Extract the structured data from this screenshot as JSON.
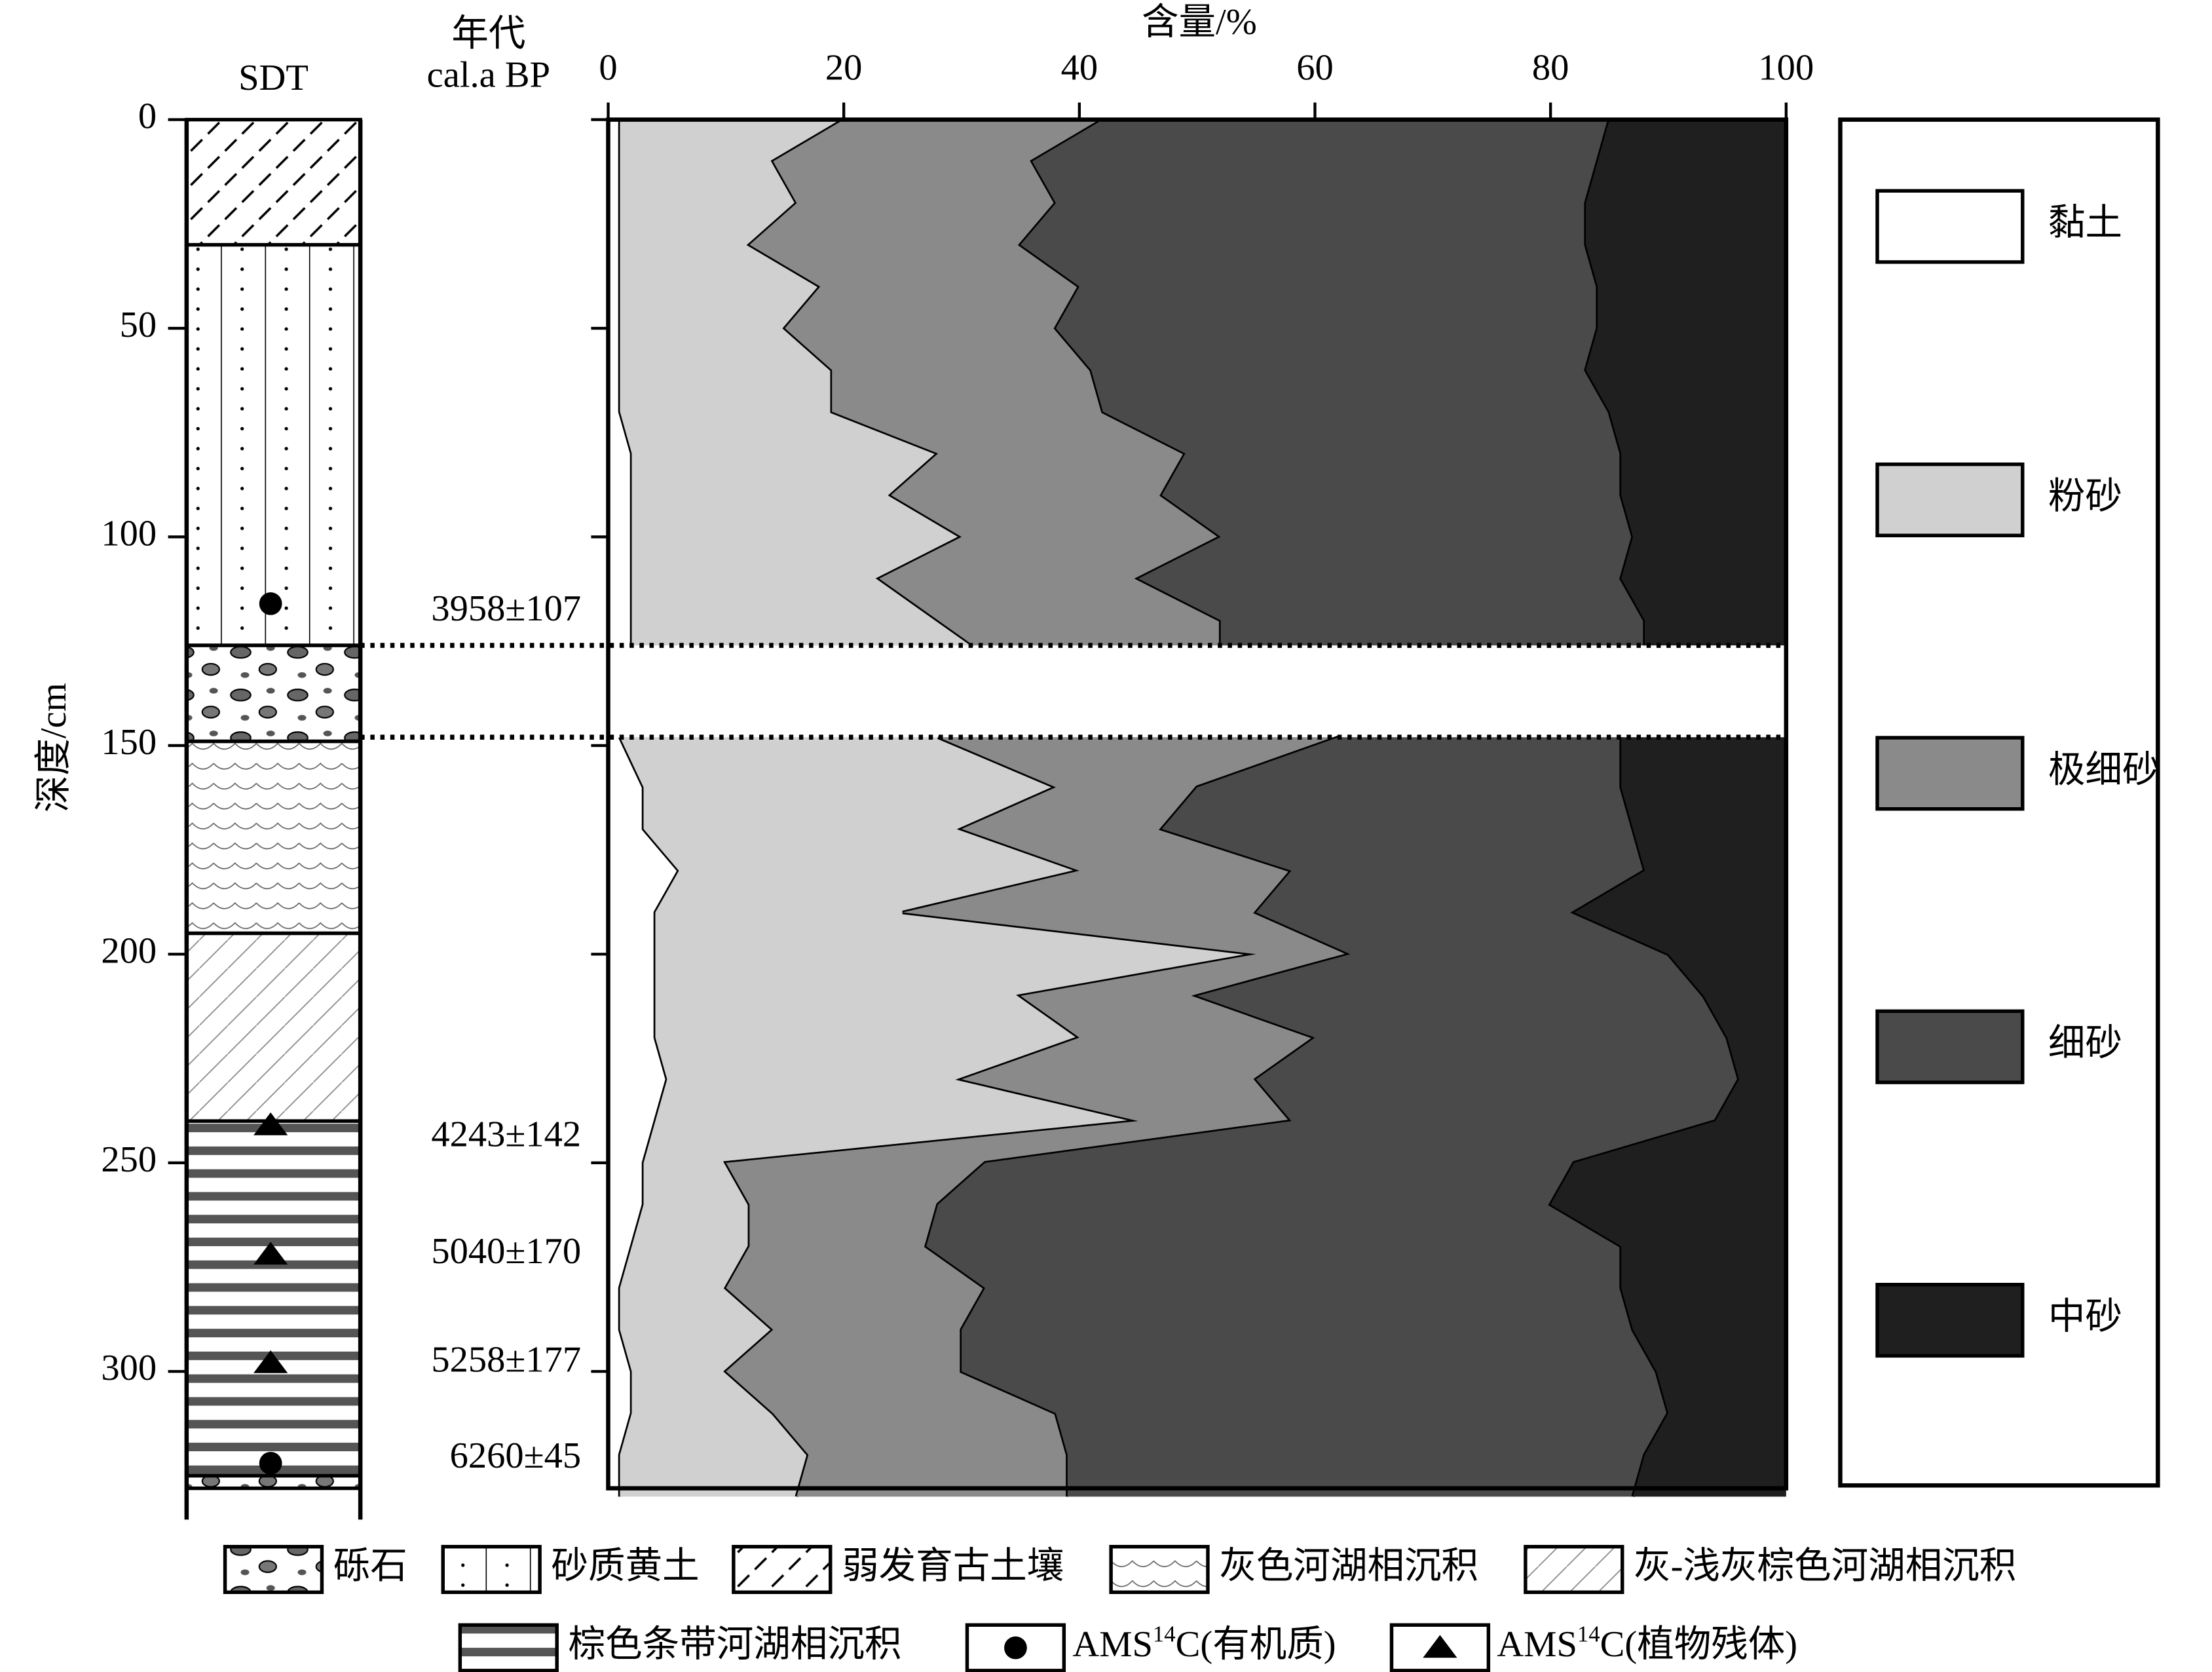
{
  "chart_data": {
    "type": "stacked-area-depth",
    "x_label": "含量/%",
    "y_label": "深度/cm",
    "column_title": "SDT",
    "age_title": "年代",
    "age_unit": "cal.a BP",
    "xlim": [
      0,
      100
    ],
    "xticks": [
      0,
      20,
      40,
      60,
      80,
      100
    ],
    "ylim": [
      0,
      328
    ],
    "yticks": [
      0,
      50,
      100,
      150,
      200,
      250,
      300
    ],
    "depths": [
      0,
      10,
      20,
      30,
      40,
      50,
      60,
      70,
      80,
      90,
      100,
      110,
      120,
      126,
      137,
      148,
      160,
      170,
      180,
      190,
      200,
      210,
      220,
      230,
      240,
      250,
      260,
      270,
      280,
      290,
      300,
      310,
      320,
      330
    ],
    "series": [
      {
        "name": "黏土",
        "color": "#ffffff",
        "values": [
          1,
          1,
          1,
          1,
          1,
          1,
          1,
          1,
          2,
          2,
          2,
          2,
          2,
          2,
          null,
          1,
          3,
          3,
          6,
          4,
          4,
          4,
          4,
          5,
          4,
          3,
          3,
          2,
          1,
          1,
          2,
          2,
          1,
          1
        ]
      },
      {
        "name": "粉砂",
        "color": "#d0d0d0",
        "values": [
          19,
          13,
          15,
          11,
          17,
          14,
          18,
          18,
          26,
          22,
          28,
          21,
          26,
          29,
          null,
          27,
          35,
          27,
          34,
          21,
          51,
          31,
          36,
          25,
          41,
          7,
          9,
          10,
          9,
          13,
          8,
          12,
          16,
          15
        ]
      },
      {
        "name": "极细砂",
        "color": "#8a8a8a",
        "values": [
          22,
          22,
          22,
          23,
          22,
          23,
          22,
          23,
          21,
          23,
          22,
          22,
          24,
          21,
          null,
          34,
          12,
          17,
          18,
          30,
          8,
          15,
          20,
          25,
          13,
          22,
          16,
          15,
          22,
          16,
          20,
          24,
          22,
          23
        ]
      },
      {
        "name": "细砂",
        "color": "#4a4a4a",
        "values": [
          43,
          48,
          45,
          48,
          44,
          46,
          42,
          43,
          37,
          39,
          35,
          41,
          36,
          36,
          null,
          24,
          36,
          40,
          30,
          27,
          27,
          43,
          35,
          41,
          36,
          50,
          52,
          59,
          54,
          57,
          59,
          52,
          49,
          48
        ]
      },
      {
        "name": "中砂",
        "color": "#1f1f1f",
        "values": [
          15,
          16,
          17,
          17,
          16,
          16,
          17,
          15,
          14,
          14,
          13,
          14,
          12,
          12,
          null,
          14,
          14,
          13,
          12,
          18,
          10,
          7,
          5,
          4,
          6,
          18,
          20,
          14,
          14,
          13,
          11,
          10,
          12,
          13
        ]
      }
    ],
    "ages": [
      {
        "text": "3958±107",
        "depth": 118
      },
      {
        "text": "4243±142",
        "depth": 244
      },
      {
        "text": "5040±170",
        "depth": 272
      },
      {
        "text": "5258±177",
        "depth": 298
      },
      {
        "text": "6260±45",
        "depth": 321
      }
    ],
    "lithology_legend": [
      "砾石",
      "砂质黄土",
      "弱发育古土壤",
      "灰色河湖相沉积",
      "灰-浅灰棕色河湖相沉积",
      "棕色条带河湖相沉积"
    ],
    "strata": [
      {
        "top": 0,
        "bottom": 30,
        "lithology": "弱发育古土壤"
      },
      {
        "top": 30,
        "bottom": 126,
        "lithology": "砂质黄土"
      },
      {
        "top": 126,
        "bottom": 149,
        "lithology": "砾石"
      },
      {
        "top": 149,
        "bottom": 195,
        "lithology": "灰色河湖相沉积"
      },
      {
        "top": 195,
        "bottom": 240,
        "lithology": "灰-浅灰棕色河湖相沉积"
      },
      {
        "top": 240,
        "bottom": 325,
        "lithology": "棕色条带河湖相沉积"
      },
      {
        "top": 325,
        "bottom": 328,
        "lithology": "砾石"
      }
    ],
    "sample_legend": [
      {
        "prefix": "AMS",
        "sup": "14",
        "suffix": "C(有机质)",
        "symbol": "circle"
      },
      {
        "prefix": "AMS",
        "sup": "14",
        "suffix": "C(植物残体)",
        "symbol": "triangle"
      }
    ],
    "samples": [
      {
        "depth": 116,
        "symbol": "circle"
      },
      {
        "depth": 241,
        "symbol": "triangle"
      },
      {
        "depth": 272,
        "symbol": "triangle"
      },
      {
        "depth": 298,
        "symbol": "triangle"
      },
      {
        "depth": 322,
        "symbol": "circle"
      }
    ]
  }
}
